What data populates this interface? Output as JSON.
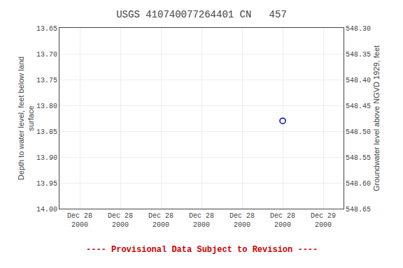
{
  "chart_data": {
    "type": "scatter",
    "title": "USGS 410740077264401 CN   457",
    "ylabel": "Depth to water level, feet below land\nsurface",
    "y2label": "Groundwater level above NGVD 1929, feet",
    "categories": [
      "Dec 28\n2000",
      "Dec 28\n2000",
      "Dec 28\n2000",
      "Dec 28\n2000",
      "Dec 28\n2000",
      "Dec 28\n2000",
      "Dec 29\n2000"
    ],
    "series": [
      {
        "color": "#0000bb",
        "marker": "circle-open",
        "values": [
          null,
          null,
          null,
          null,
          null,
          13.83,
          null
        ]
      }
    ],
    "ylim": [
      14.0,
      13.65
    ],
    "yticks": [
      13.65,
      {
        "value": 13.7,
        "label": "13.70"
      },
      13.75,
      {
        "value": 13.8,
        "label": "13.80"
      },
      13.85,
      {
        "value": 13.9,
        "label": "13.90"
      },
      13.95,
      {
        "value": 14,
        "label": "14.00"
      }
    ],
    "y2lim": [
      548.65,
      548.3
    ],
    "y2ticks": [
      548.65,
      {
        "value": 548.6,
        "label": "548.60"
      },
      548.55,
      {
        "value": 548.5,
        "label": "548.50"
      },
      548.45,
      {
        "value": 548.4,
        "label": "548.40"
      },
      548.35,
      {
        "value": 548.3,
        "label": "548.30"
      }
    ],
    "grid": true,
    "annotations": [
      {
        "text": "---- Provisional Data Subject to Revision ----",
        "color": "#cc0000"
      }
    ]
  }
}
